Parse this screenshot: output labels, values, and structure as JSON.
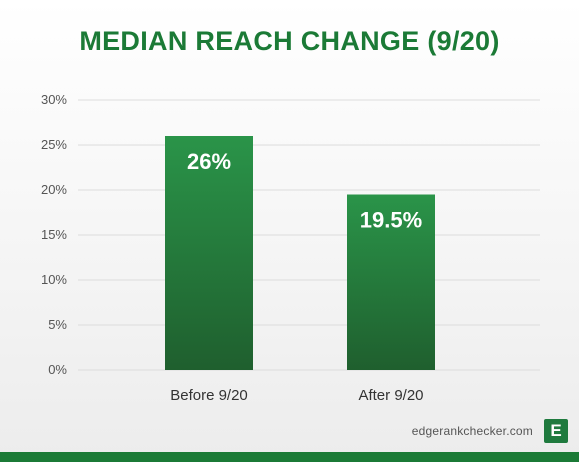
{
  "colors": {
    "title": "#1b7a36",
    "bar_top": "#2a9449",
    "bar_bottom": "#1f5f2e",
    "grid": "#dcdcdc",
    "bottom_bar": "#1b7a36"
  },
  "chart_data": {
    "type": "bar",
    "title": "MEDIAN REACH CHANGE (9/20)",
    "xlabel": "",
    "ylabel": "",
    "categories": [
      "Before 9/20",
      "After 9/20"
    ],
    "values": [
      26,
      19.5
    ],
    "data_labels": [
      "26%",
      "19.5%"
    ],
    "ylim": [
      0,
      30
    ],
    "yticks": [
      0,
      5,
      10,
      15,
      20,
      25,
      30
    ],
    "ytick_labels": [
      "0%",
      "5%",
      "10%",
      "15%",
      "20%",
      "25%",
      "30%"
    ],
    "grid": true,
    "legend": "none"
  },
  "footer": {
    "site": "edgerankchecker.com",
    "logo_letter": "E",
    "logo_icon": "edgerank-e-logo-icon"
  }
}
